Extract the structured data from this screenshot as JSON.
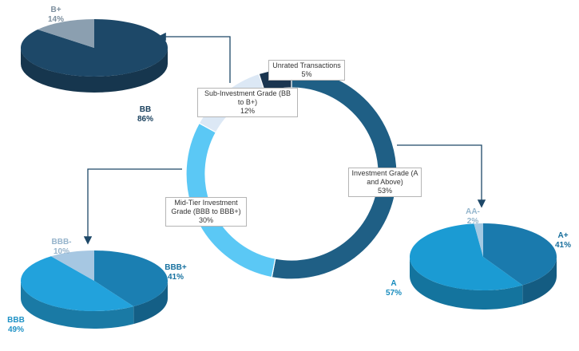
{
  "chart_data": [
    {
      "type": "donut",
      "categories": [
        "Investment Grade (A and Above)",
        "Mid-Tier Investment Grade (BBB to BBB+)",
        "Sub-Investment Grade (BB to B+)",
        "Unrated Transactions"
      ],
      "values": [
        53,
        30,
        12,
        5
      ],
      "value_labels": [
        "53%",
        "30%",
        "12%",
        "5%"
      ],
      "colors": [
        "#1f5f85",
        "#5bc8f5",
        "#dce8f5",
        "#1a3550"
      ]
    },
    {
      "type": "pie",
      "categories": [
        "BB",
        "B+"
      ],
      "values": [
        86,
        14
      ],
      "value_labels": [
        "86%",
        "14%"
      ],
      "colors": [
        "#1d4868",
        "#8b9fb0"
      ]
    },
    {
      "type": "pie",
      "categories": [
        "BBB+",
        "BBB",
        "BBB-"
      ],
      "values": [
        41,
        49,
        10
      ],
      "value_labels": [
        "41%",
        "49%",
        "10%"
      ],
      "colors": [
        "#1b7fb2",
        "#22a2dc",
        "#a6c7e2"
      ]
    },
    {
      "type": "pie",
      "categories": [
        "A+",
        "A",
        "AA-"
      ],
      "values": [
        41,
        57,
        2
      ],
      "value_labels": [
        "41%",
        "57%",
        "2%"
      ],
      "colors": [
        "#1a7aad",
        "#1b9bd3",
        "#a3c9e3"
      ]
    }
  ]
}
